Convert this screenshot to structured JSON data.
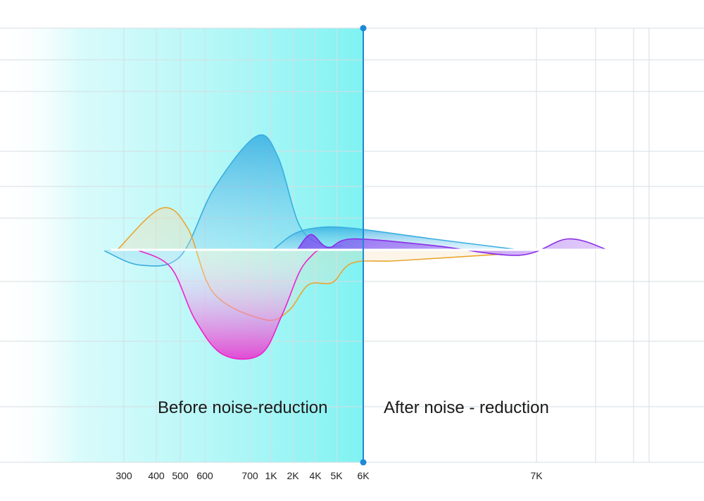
{
  "chart_data": {
    "type": "area",
    "title": "",
    "xlabel": "",
    "ylabel": "",
    "categories": [
      "300",
      "400",
      "500",
      "600",
      "700",
      "1K",
      "2K",
      "4K",
      "5K",
      "6K",
      "7K"
    ],
    "divider_at": "6K",
    "regions": [
      {
        "label": "Before noise-reduction",
        "side": "left"
      },
      {
        "label": "After noise - reduction",
        "side": "right"
      }
    ],
    "grid": true,
    "colors": {
      "before_band": "#7ff2f2",
      "divider": "#1e88d8",
      "blue": "#3aaee0",
      "orange": "#e8a630",
      "magenta": "#ee22cc",
      "purple": "#8a2ee6"
    },
    "curves": [
      {
        "color": "blue",
        "fill": true,
        "points": [
          [
            -0.6,
            -0.005
          ],
          [
            0.5,
            -0.07
          ],
          [
            2,
            -0.03
          ],
          [
            3.2,
            0.28
          ],
          [
            4.3,
            0.52
          ],
          [
            5.3,
            0.43
          ],
          [
            6.3,
            0.11
          ],
          [
            7.4,
            0.02
          ],
          [
            8.2,
            0.02
          ]
        ]
      },
      {
        "color": "blue",
        "fill": true,
        "points": [
          [
            5.1,
            0
          ],
          [
            6,
            0.07
          ],
          [
            7,
            0.1
          ],
          [
            8.5,
            0.1
          ],
          [
            9.4,
            0.05
          ],
          [
            9.9,
            0
          ]
        ]
      },
      {
        "color": "orange",
        "fill": true,
        "points": [
          [
            -0.2,
            0
          ],
          [
            1.2,
            0.19
          ],
          [
            2.3,
            0.1
          ],
          [
            3.2,
            -0.2
          ],
          [
            4.7,
            -0.32
          ],
          [
            5.8,
            -0.28
          ],
          [
            6.7,
            -0.16
          ],
          [
            7.8,
            -0.15
          ],
          [
            8.6,
            -0.06
          ],
          [
            9.2,
            -0.05
          ],
          [
            9.8,
            -0.02
          ]
        ]
      },
      {
        "color": "magenta",
        "fill": true,
        "points": [
          [
            0.4,
            0
          ],
          [
            1.6,
            -0.08
          ],
          [
            2.6,
            -0.32
          ],
          [
            3.4,
            -0.48
          ],
          [
            4.5,
            -0.48
          ],
          [
            5.5,
            -0.3
          ],
          [
            6.3,
            -0.1
          ],
          [
            6.9,
            -0.02
          ],
          [
            7.2,
            0
          ]
        ]
      },
      {
        "color": "purple",
        "fill": true,
        "points": [
          [
            6.2,
            0
          ],
          [
            6.8,
            0.07
          ],
          [
            7.6,
            0.01
          ],
          [
            8.6,
            0.05
          ],
          [
            9.4,
            0.02
          ],
          [
            9.9,
            -0.025
          ],
          [
            10.4,
            0.05
          ],
          [
            10.9,
            0
          ]
        ]
      }
    ]
  }
}
